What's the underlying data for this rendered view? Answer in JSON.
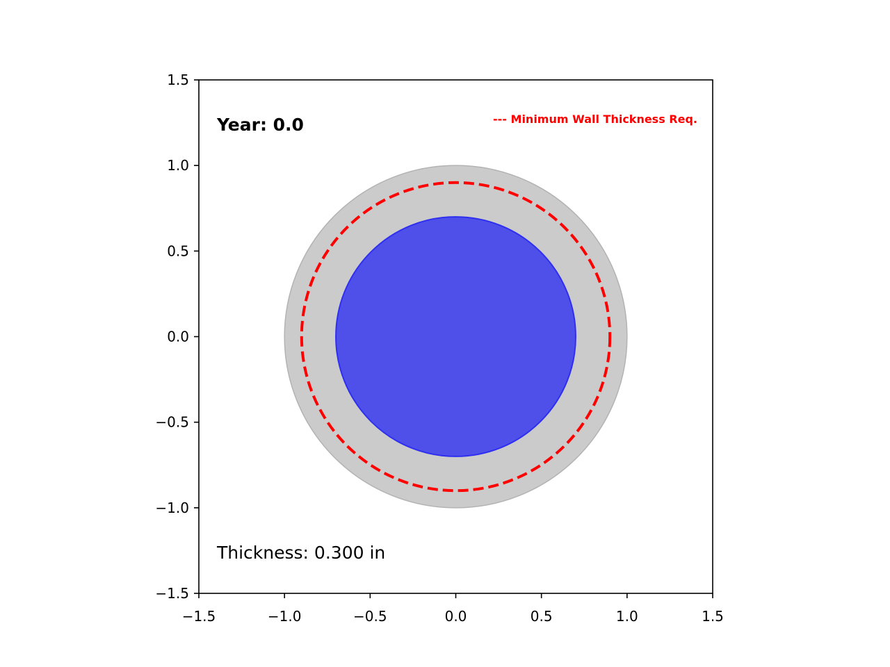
{
  "chart_data": {
    "type": "scatter",
    "title": "",
    "xlabel": "",
    "ylabel": "",
    "xlim": [
      -1.5,
      1.5
    ],
    "ylim": [
      -1.5,
      1.5
    ],
    "grid": false,
    "xticks": [
      -1.5,
      -1.0,
      -0.5,
      0.0,
      0.5,
      1.0,
      1.5
    ],
    "yticks": [
      -1.5,
      -1.0,
      -0.5,
      0.0,
      0.5,
      1.0,
      1.5
    ],
    "tick_labels": [
      "−1.5",
      "−1.0",
      "−0.5",
      "0.0",
      "0.5",
      "1.0",
      "1.5"
    ],
    "pipe": {
      "center": [
        0.0,
        0.0
      ],
      "outer_radius": 1.0,
      "inner_radius": 0.7,
      "min_wall_radius": 0.9,
      "wall_color": "#cbcbcb",
      "wall_edge_color": "#b3b3b3",
      "bore_color": "#4f4fea",
      "bore_edge_color": "#2f2ff0",
      "min_wall_color": "#ff0000"
    },
    "annotations": {
      "year": "Year: 0.0",
      "thickness": "Thickness: 0.300 in",
      "legend": "--- Minimum Wall Thickness Req."
    }
  }
}
